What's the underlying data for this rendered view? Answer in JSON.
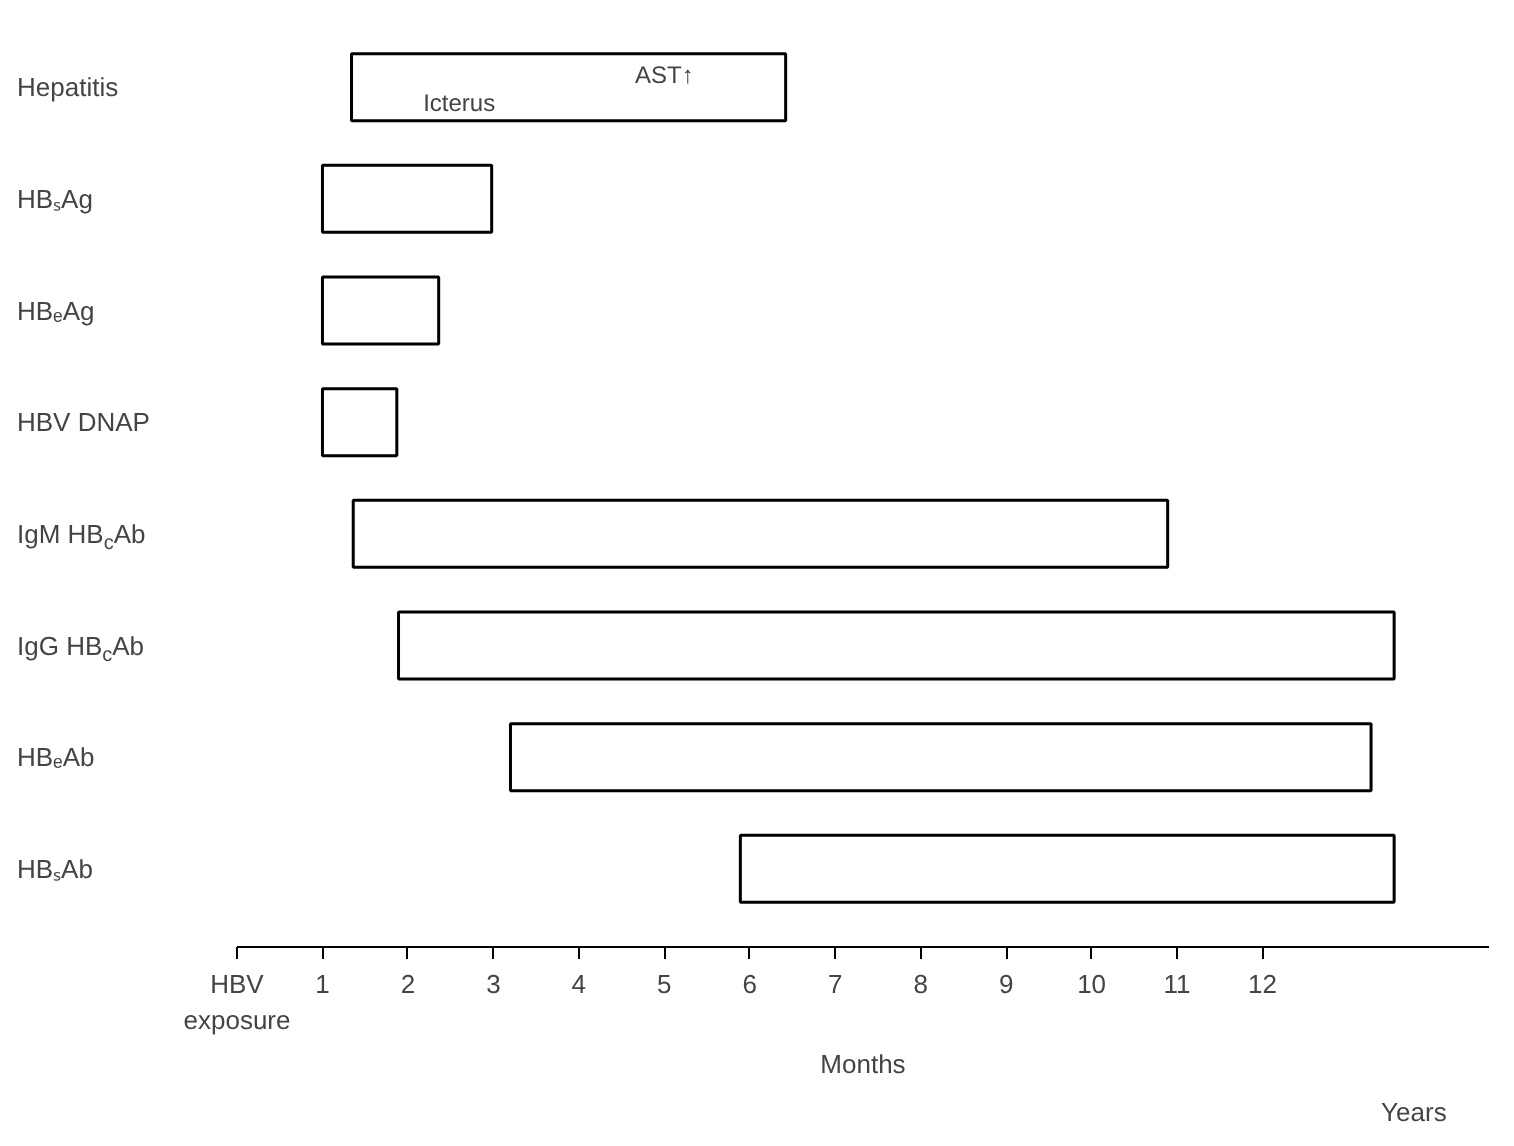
{
  "chart_data": {
    "type": "bar",
    "orientation": "horizontal",
    "xlabel": "Months",
    "categories": [
      "Hepatitis",
      "HBₛAg",
      "HBₑAg",
      "HBV DNAP",
      "IgM HB$_{c}$Ab",
      "IgG HB$_{c}$Ab",
      "HBₑAb",
      "HBₛAb"
    ],
    "base": [
      1.34,
      1.0,
      1.0,
      1.0,
      1.36,
      1.89,
      3.2,
      5.89
    ],
    "values": [
      5.08,
      1.98,
      1.36,
      0.87,
      9.53,
      11.65,
      10.07,
      7.65
    ],
    "color": "#ffffff",
    "xlim": [
      0,
      14.65
    ],
    "xticks": [
      {
        "value": 0,
        "label": "HBV\nexposure"
      },
      1,
      2,
      3,
      4,
      5,
      6,
      7,
      8,
      9,
      10,
      11,
      12
    ],
    "annotations": [
      "Icterus",
      "AST↑",
      "Years"
    ],
    "grid": false
  }
}
